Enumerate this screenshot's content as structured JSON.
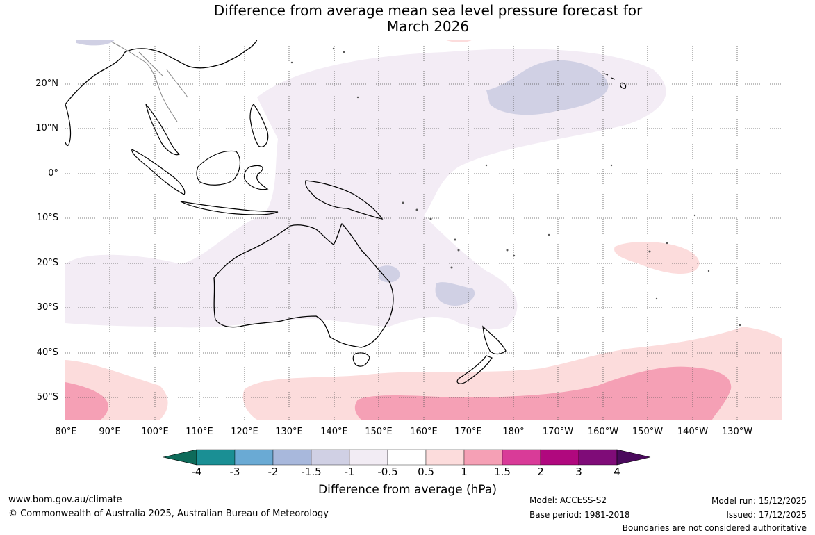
{
  "title_line1": "Difference from average mean sea level pressure forecast for",
  "title_line2": "March 2026",
  "lat_labels": [
    "20°N",
    "10°N",
    "0°",
    "10°S",
    "20°S",
    "30°S",
    "40°S",
    "50°S"
  ],
  "lon_labels": [
    "80°E",
    "90°E",
    "100°E",
    "110°E",
    "120°E",
    "130°E",
    "140°E",
    "150°E",
    "160°E",
    "170°E",
    "180°",
    "170°W",
    "160°W",
    "150°W",
    "140°W",
    "130°W"
  ],
  "colorbar": {
    "ticks": [
      "-4",
      "-3",
      "-2",
      "-1.5",
      "-1",
      "-0.5",
      "0.5",
      "1",
      "1.5",
      "2",
      "3",
      "4"
    ],
    "colors": [
      "#0e6b5a",
      "#1a8f94",
      "#6aaad4",
      "#a8b8dc",
      "#d0d0e4",
      "#f2ecf4",
      "#ffffff",
      "#fcdcdc",
      "#f5a0b5",
      "#d93b98",
      "#b0087e",
      "#7f0c78",
      "#4a0a5c"
    ],
    "label": "Difference from average (hPa)"
  },
  "footer": {
    "website": "www.bom.gov.au/climate",
    "copyright": "© Commonwealth of Australia 2025, Australian Bureau of Meteorology",
    "model": "Model: ACCESS-S2",
    "base_period": "Base period: 1981-2018",
    "model_run": "Model run: 15/12/2025",
    "issued": "Issued: 17/12/2025",
    "disclaimer": "Boundaries are not considered authoritative"
  }
}
